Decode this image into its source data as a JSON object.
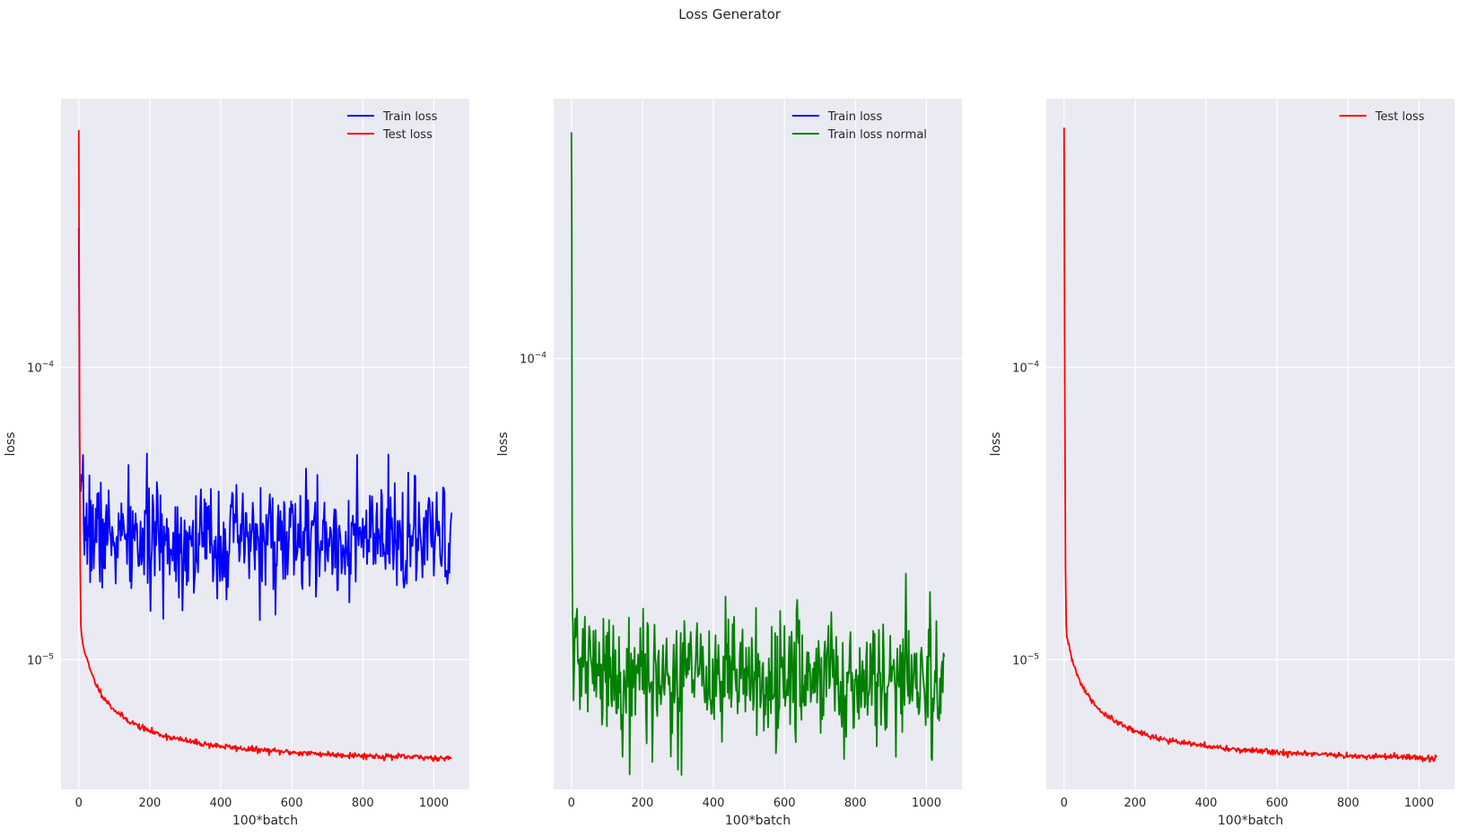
{
  "figure": {
    "title": "Loss Generator"
  },
  "chart_data": [
    {
      "type": "line",
      "xlabel": "100*batch",
      "ylabel": "loss",
      "y_scale": "log",
      "xlim": [
        -50,
        1100
      ],
      "ylim": [
        3.6e-06,
        0.00083
      ],
      "x_ticks": [
        0,
        200,
        400,
        600,
        800,
        1000
      ],
      "y_ticks": [
        0.0001,
        1e-05
      ],
      "y_tick_labels": [
        {
          "base": "10",
          "exp": "−4"
        },
        {
          "base": "10",
          "exp": "−5"
        }
      ],
      "grid": true,
      "legend_position": "top-right",
      "series": [
        {
          "name": "Train loss",
          "color": "#0000ff",
          "kind": "noisy",
          "x_end": 1050,
          "spike": 0.0003,
          "base": 2.55e-05,
          "noise": 0.22,
          "seed": 7
        },
        {
          "name": "Test loss",
          "color": "#ff0000",
          "kind": "decay",
          "x_end": 1050,
          "start": 0.00065,
          "floor": 4.3e-06,
          "seed": 11
        }
      ]
    },
    {
      "type": "line",
      "xlabel": "100*batch",
      "ylabel": "loss",
      "y_scale": "log",
      "xlim": [
        -50,
        1100
      ],
      "ylim": [
        6.5e-06,
        0.00052
      ],
      "x_ticks": [
        0,
        200,
        400,
        600,
        800,
        1000
      ],
      "y_ticks": [
        0.0001
      ],
      "y_tick_labels": [
        {
          "base": "10",
          "exp": "−4"
        }
      ],
      "grid": true,
      "legend_position": "top-right",
      "series": [
        {
          "name": "Train loss",
          "color": "#0000ff",
          "kind": "hidden",
          "x_end": 1050
        },
        {
          "name": "Train loss normal",
          "color": "#008000",
          "kind": "noisy",
          "x_end": 1050,
          "spike": 0.00042,
          "base": 1.32e-05,
          "noise": 0.2,
          "seed": 21
        }
      ]
    },
    {
      "type": "line",
      "xlabel": "100*batch",
      "ylabel": "loss",
      "y_scale": "log",
      "xlim": [
        -50,
        1100
      ],
      "ylim": [
        3.6e-06,
        0.00083
      ],
      "x_ticks": [
        0,
        200,
        400,
        600,
        800,
        1000
      ],
      "y_ticks": [
        0.0001,
        1e-05
      ],
      "y_tick_labels": [
        {
          "base": "10",
          "exp": "−4"
        },
        {
          "base": "10",
          "exp": "−5"
        }
      ],
      "grid": true,
      "legend_position": "top-right",
      "series": [
        {
          "name": "Test loss",
          "color": "#ff0000",
          "kind": "decay",
          "x_end": 1050,
          "start": 0.00065,
          "floor": 4.3e-06,
          "seed": 31
        }
      ]
    }
  ]
}
